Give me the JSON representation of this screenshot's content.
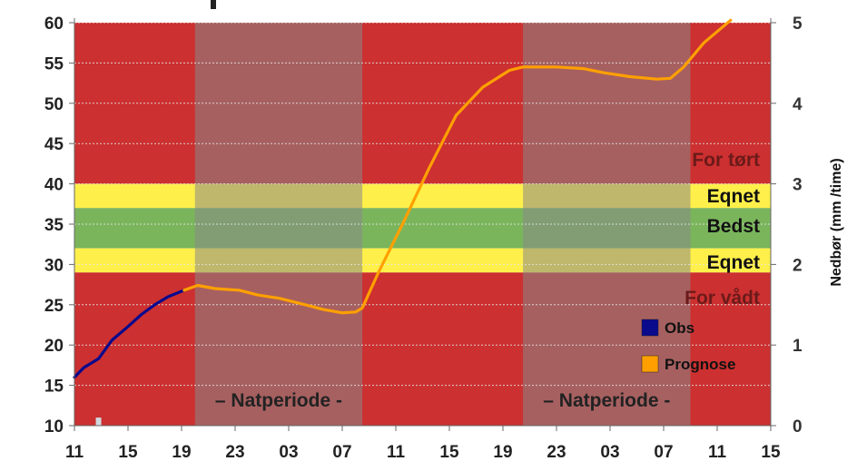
{
  "chart_data": {
    "type": "line",
    "y_axis": {
      "ticks": [
        10,
        15,
        20,
        25,
        30,
        35,
        40,
        45,
        50,
        55,
        60
      ],
      "range": [
        10,
        60
      ]
    },
    "y2_axis": {
      "label": "Nedbør (mm /time)",
      "ticks": [
        0,
        1,
        2,
        3,
        4,
        5
      ],
      "range": [
        0,
        5
      ]
    },
    "x_axis": {
      "tick_labels": [
        "11",
        "15",
        "19",
        "23",
        "03",
        "07",
        "11",
        "15",
        "19",
        "23",
        "03",
        "07",
        "11",
        "15"
      ],
      "range_hours": [
        0,
        52
      ]
    },
    "zones": [
      {
        "label": "For tørt",
        "from": 40,
        "to": 60,
        "color": "#cc3030"
      },
      {
        "label": "Eqnet",
        "from": 37,
        "to": 40,
        "color": "#ffef4a"
      },
      {
        "label": "Bedst",
        "from": 32,
        "to": 37,
        "color": "#7ab55c"
      },
      {
        "label": "Eqnet",
        "from": 29,
        "to": 32,
        "color": "#ffef4a"
      },
      {
        "label": "For vådt",
        "from": 10,
        "to": 29,
        "color": "#cc3030"
      }
    ],
    "night_periods": [
      {
        "label": "Natperiode",
        "start_hour": 9,
        "end_hour": 21.5
      },
      {
        "label": "Natperiode",
        "start_hour": 33.5,
        "end_hour": 46
      }
    ],
    "series": [
      {
        "name": "Obs",
        "color": "#0a0a8c",
        "points": [
          [
            0,
            16
          ],
          [
            0.7,
            17.2
          ],
          [
            1.8,
            18.3
          ],
          [
            2.8,
            20.6
          ],
          [
            4,
            22.3
          ],
          [
            5,
            23.8
          ],
          [
            6,
            25
          ],
          [
            7,
            26
          ],
          [
            8.2,
            26.8
          ]
        ]
      },
      {
        "name": "Prognose",
        "color": "#ffa000",
        "points": [
          [
            8.2,
            26.8
          ],
          [
            9.2,
            27.4
          ],
          [
            10.5,
            27
          ],
          [
            12.3,
            26.8
          ],
          [
            13.7,
            26.2
          ],
          [
            15.3,
            25.8
          ],
          [
            17,
            25.1
          ],
          [
            18.6,
            24.4
          ],
          [
            20,
            24
          ],
          [
            21,
            24.1
          ],
          [
            21.5,
            24.6
          ],
          [
            22.7,
            29
          ],
          [
            24.5,
            35
          ],
          [
            26.5,
            42
          ],
          [
            28.5,
            48.5
          ],
          [
            30.5,
            52
          ],
          [
            32.5,
            54.1
          ],
          [
            33.5,
            54.5
          ],
          [
            36,
            54.5
          ],
          [
            38,
            54.3
          ],
          [
            39.5,
            53.8
          ],
          [
            41.5,
            53.3
          ],
          [
            43.5,
            53
          ],
          [
            44.5,
            53.1
          ],
          [
            45.5,
            54.5
          ],
          [
            47,
            57.5
          ],
          [
            49,
            60.3
          ]
        ]
      }
    ],
    "precipitation_bars": [
      {
        "hour": 1.8,
        "value": 0.1
      }
    ],
    "legend": {
      "position": "right",
      "entries": [
        {
          "label": "Obs",
          "color": "#0a0a8c"
        },
        {
          "label": "Prognose",
          "color": "#ffa000"
        }
      ]
    },
    "grid": true,
    "colors": {
      "dry_wet": "#cc3030",
      "night_overlay": "#888888",
      "grid": "#e8e8e8"
    }
  }
}
